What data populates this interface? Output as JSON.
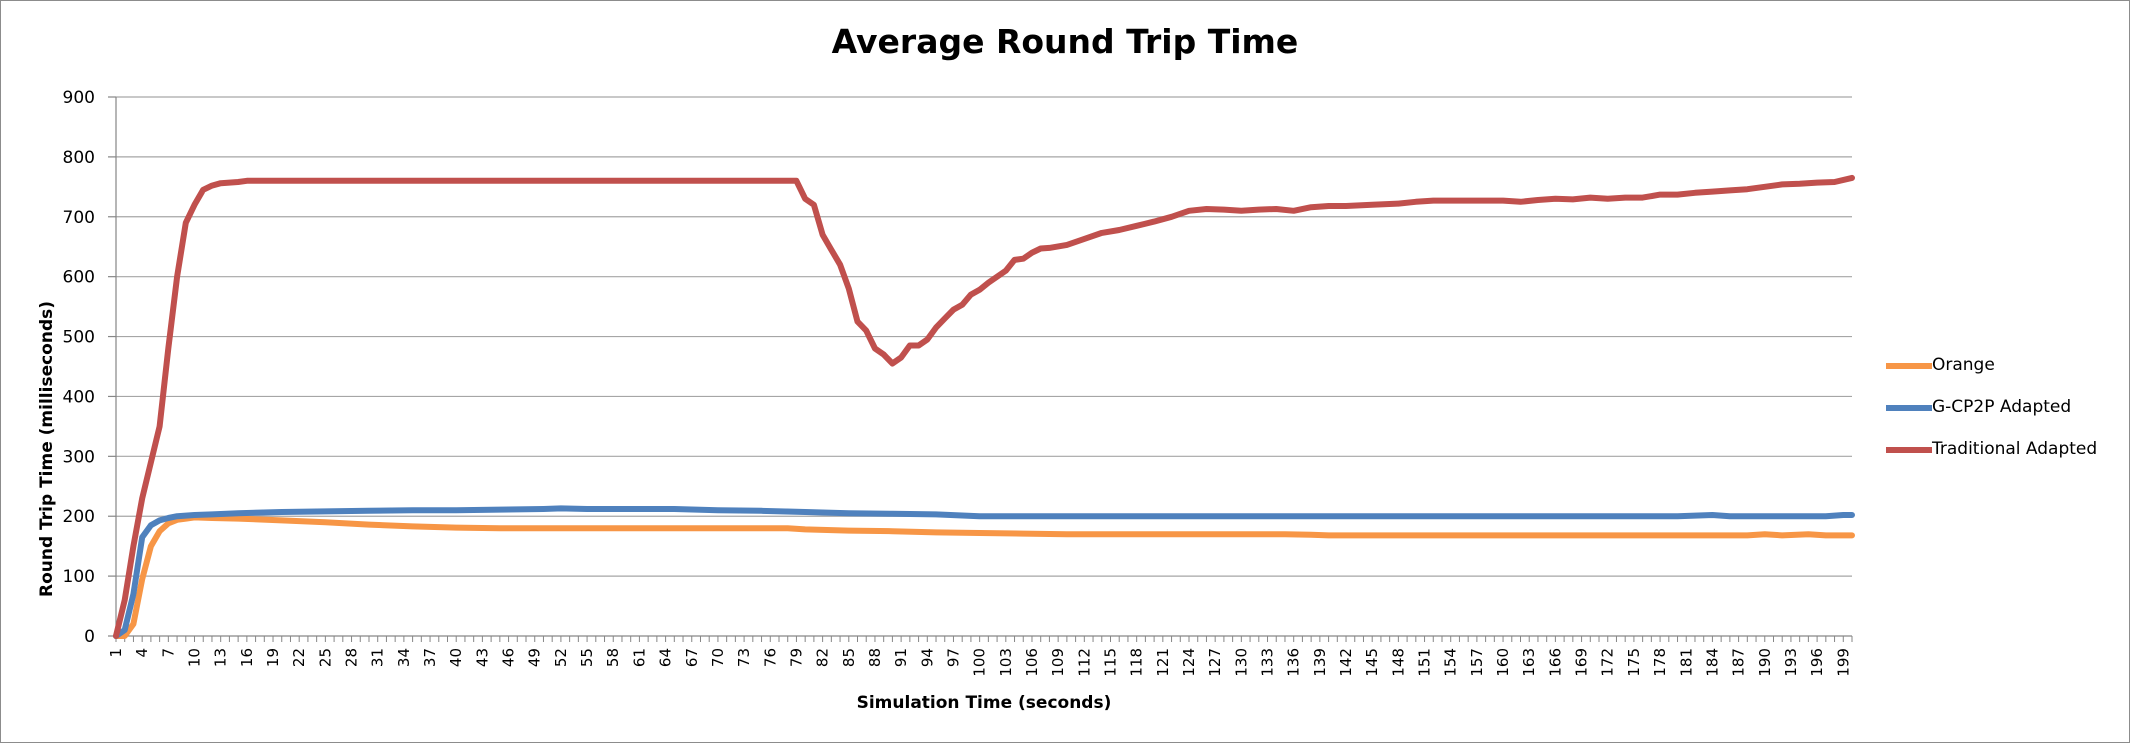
{
  "chart_data": {
    "type": "line",
    "title": "Average Round Trip Time",
    "xlabel": "Simulation Time (seconds)",
    "ylabel": "Round Trip Time (milliseconds)",
    "ylim": [
      0,
      900
    ],
    "yticks": [
      0,
      100,
      200,
      300,
      400,
      500,
      600,
      700,
      800,
      900
    ],
    "x_range": [
      1,
      200
    ],
    "x_tick_labels": [
      "1",
      "4",
      "7",
      "10",
      "13",
      "16",
      "19",
      "22",
      "25",
      "28",
      "31",
      "34",
      "37",
      "40",
      "43",
      "46",
      "49",
      "52",
      "55",
      "58",
      "61",
      "64",
      "67",
      "70",
      "73",
      "76",
      "79",
      "82",
      "85",
      "88",
      "91",
      "94",
      "97",
      "100",
      "103",
      "106",
      "109",
      "112",
      "115",
      "118",
      "121",
      "124",
      "127",
      "130",
      "133",
      "136",
      "139",
      "142",
      "145",
      "148",
      "151",
      "154",
      "157",
      "160",
      "163",
      "166",
      "169",
      "172",
      "175",
      "178",
      "181",
      "184",
      "187",
      "190",
      "193",
      "196",
      "199"
    ],
    "grid": true,
    "legend_position": "right",
    "series": [
      {
        "name": "Orange",
        "color": "#f79646",
        "points": [
          [
            1,
            0
          ],
          [
            2,
            0
          ],
          [
            3,
            20
          ],
          [
            4,
            95
          ],
          [
            5,
            150
          ],
          [
            6,
            175
          ],
          [
            7,
            188
          ],
          [
            8,
            194
          ],
          [
            9,
            196
          ],
          [
            10,
            198
          ],
          [
            12,
            197
          ],
          [
            15,
            196
          ],
          [
            20,
            193
          ],
          [
            25,
            190
          ],
          [
            30,
            186
          ],
          [
            35,
            183
          ],
          [
            40,
            181
          ],
          [
            45,
            180
          ],
          [
            50,
            180
          ],
          [
            60,
            180
          ],
          [
            70,
            180
          ],
          [
            75,
            180
          ],
          [
            78,
            180
          ],
          [
            80,
            178
          ],
          [
            85,
            176
          ],
          [
            90,
            175
          ],
          [
            95,
            173
          ],
          [
            100,
            172
          ],
          [
            105,
            171
          ],
          [
            110,
            170
          ],
          [
            120,
            170
          ],
          [
            130,
            170
          ],
          [
            135,
            170
          ],
          [
            138,
            169
          ],
          [
            140,
            168
          ],
          [
            145,
            168
          ],
          [
            150,
            168
          ],
          [
            160,
            168
          ],
          [
            170,
            168
          ],
          [
            180,
            168
          ],
          [
            188,
            168
          ],
          [
            190,
            170
          ],
          [
            192,
            168
          ],
          [
            195,
            170
          ],
          [
            197,
            168
          ],
          [
            200,
            168
          ]
        ]
      },
      {
        "name": "G-CP2P Adapted",
        "color": "#4f81bd",
        "points": [
          [
            1,
            0
          ],
          [
            2,
            10
          ],
          [
            3,
            70
          ],
          [
            4,
            165
          ],
          [
            5,
            185
          ],
          [
            6,
            193
          ],
          [
            7,
            197
          ],
          [
            8,
            200
          ],
          [
            9,
            201
          ],
          [
            10,
            202
          ],
          [
            12,
            203
          ],
          [
            15,
            205
          ],
          [
            20,
            207
          ],
          [
            25,
            208
          ],
          [
            30,
            209
          ],
          [
            35,
            210
          ],
          [
            40,
            210
          ],
          [
            45,
            211
          ],
          [
            50,
            212
          ],
          [
            52,
            213
          ],
          [
            55,
            212
          ],
          [
            60,
            212
          ],
          [
            65,
            212
          ],
          [
            70,
            210
          ],
          [
            75,
            209
          ],
          [
            80,
            207
          ],
          [
            85,
            205
          ],
          [
            90,
            204
          ],
          [
            95,
            203
          ],
          [
            100,
            200
          ],
          [
            105,
            200
          ],
          [
            110,
            200
          ],
          [
            120,
            200
          ],
          [
            130,
            200
          ],
          [
            140,
            200
          ],
          [
            150,
            200
          ],
          [
            160,
            200
          ],
          [
            170,
            200
          ],
          [
            180,
            200
          ],
          [
            184,
            202
          ],
          [
            186,
            200
          ],
          [
            190,
            200
          ],
          [
            195,
            200
          ],
          [
            197,
            200
          ],
          [
            199,
            202
          ],
          [
            200,
            202
          ]
        ]
      },
      {
        "name": "Traditional Adapted",
        "color": "#c0504d",
        "points": [
          [
            1,
            0
          ],
          [
            2,
            60
          ],
          [
            3,
            150
          ],
          [
            4,
            230
          ],
          [
            5,
            290
          ],
          [
            6,
            350
          ],
          [
            7,
            480
          ],
          [
            8,
            600
          ],
          [
            9,
            690
          ],
          [
            10,
            720
          ],
          [
            11,
            745
          ],
          [
            12,
            752
          ],
          [
            13,
            756
          ],
          [
            15,
            758
          ],
          [
            16,
            760
          ],
          [
            20,
            760
          ],
          [
            30,
            760
          ],
          [
            40,
            760
          ],
          [
            50,
            760
          ],
          [
            60,
            760
          ],
          [
            70,
            760
          ],
          [
            79,
            760
          ],
          [
            80,
            730
          ],
          [
            81,
            720
          ],
          [
            82,
            670
          ],
          [
            83,
            645
          ],
          [
            84,
            620
          ],
          [
            85,
            580
          ],
          [
            86,
            525
          ],
          [
            87,
            510
          ],
          [
            88,
            480
          ],
          [
            89,
            470
          ],
          [
            90,
            455
          ],
          [
            91,
            465
          ],
          [
            92,
            485
          ],
          [
            93,
            485
          ],
          [
            94,
            495
          ],
          [
            95,
            515
          ],
          [
            96,
            530
          ],
          [
            97,
            545
          ],
          [
            98,
            553
          ],
          [
            99,
            570
          ],
          [
            100,
            578
          ],
          [
            101,
            590
          ],
          [
            102,
            600
          ],
          [
            103,
            610
          ],
          [
            104,
            628
          ],
          [
            105,
            630
          ],
          [
            106,
            640
          ],
          [
            107,
            647
          ],
          [
            108,
            648
          ],
          [
            110,
            653
          ],
          [
            112,
            663
          ],
          [
            114,
            673
          ],
          [
            116,
            678
          ],
          [
            118,
            685
          ],
          [
            120,
            692
          ],
          [
            122,
            700
          ],
          [
            124,
            710
          ],
          [
            126,
            713
          ],
          [
            128,
            712
          ],
          [
            130,
            710
          ],
          [
            132,
            712
          ],
          [
            134,
            713
          ],
          [
            136,
            710
          ],
          [
            138,
            716
          ],
          [
            140,
            718
          ],
          [
            142,
            718
          ],
          [
            145,
            720
          ],
          [
            148,
            722
          ],
          [
            150,
            725
          ],
          [
            152,
            727
          ],
          [
            155,
            727
          ],
          [
            158,
            727
          ],
          [
            160,
            727
          ],
          [
            162,
            725
          ],
          [
            164,
            728
          ],
          [
            166,
            730
          ],
          [
            168,
            729
          ],
          [
            170,
            732
          ],
          [
            172,
            730
          ],
          [
            174,
            732
          ],
          [
            176,
            732
          ],
          [
            178,
            737
          ],
          [
            180,
            737
          ],
          [
            182,
            740
          ],
          [
            184,
            742
          ],
          [
            186,
            744
          ],
          [
            188,
            746
          ],
          [
            190,
            750
          ],
          [
            192,
            754
          ],
          [
            194,
            755
          ],
          [
            196,
            757
          ],
          [
            198,
            758
          ],
          [
            200,
            765
          ]
        ]
      }
    ]
  }
}
